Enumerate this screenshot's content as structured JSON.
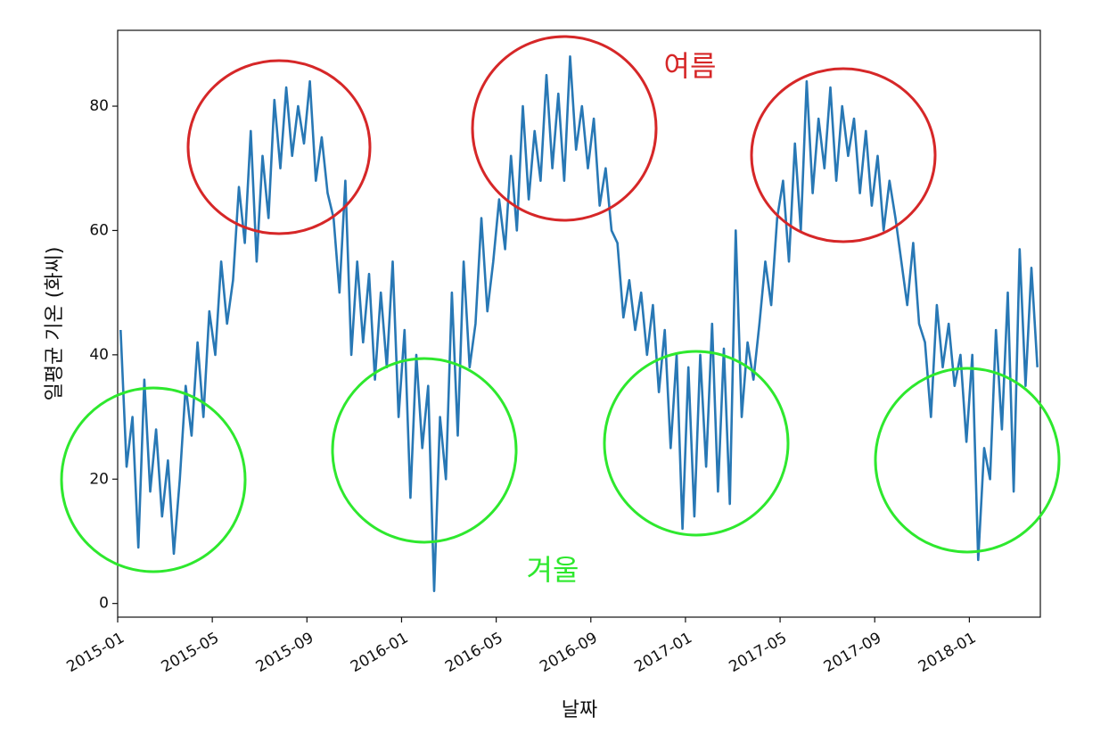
{
  "chart_data": {
    "type": "line",
    "xlabel": "날짜",
    "ylabel": "일평균 기온 (화씨)",
    "annotations": [
      {
        "text": "여름",
        "color": "#d62728"
      },
      {
        "text": "겨울",
        "color": "#2ee82e"
      }
    ],
    "color": "#2878b5",
    "x": [
      "2015-01",
      "2015-01",
      "2015-01",
      "2015-01",
      "2015-02",
      "2015-02",
      "2015-02",
      "2015-02",
      "2015-03",
      "2015-03",
      "2015-03",
      "2015-03",
      "2015-04",
      "2015-04",
      "2015-04",
      "2015-04",
      "2015-05",
      "2015-05",
      "2015-05",
      "2015-05",
      "2015-06",
      "2015-06",
      "2015-06",
      "2015-06",
      "2015-07",
      "2015-07",
      "2015-07",
      "2015-07",
      "2015-08",
      "2015-08",
      "2015-08",
      "2015-08",
      "2015-09",
      "2015-09",
      "2015-09",
      "2015-09",
      "2015-10",
      "2015-10",
      "2015-10",
      "2015-10",
      "2015-11",
      "2015-11",
      "2015-11",
      "2015-11",
      "2015-12",
      "2015-12",
      "2015-12",
      "2015-12",
      "2016-01",
      "2016-01",
      "2016-01",
      "2016-01",
      "2016-02",
      "2016-02",
      "2016-02",
      "2016-02",
      "2016-03",
      "2016-03",
      "2016-03",
      "2016-03",
      "2016-04",
      "2016-04",
      "2016-04",
      "2016-04",
      "2016-05",
      "2016-05",
      "2016-05",
      "2016-05",
      "2016-06",
      "2016-06",
      "2016-06",
      "2016-06",
      "2016-07",
      "2016-07",
      "2016-07",
      "2016-07",
      "2016-08",
      "2016-08",
      "2016-08",
      "2016-08",
      "2016-09",
      "2016-09",
      "2016-09",
      "2016-09",
      "2016-10",
      "2016-10",
      "2016-10",
      "2016-10",
      "2016-11",
      "2016-11",
      "2016-11",
      "2016-11",
      "2016-12",
      "2016-12",
      "2016-12",
      "2016-12",
      "2017-01",
      "2017-01",
      "2017-01",
      "2017-01",
      "2017-02",
      "2017-02",
      "2017-02",
      "2017-02",
      "2017-03",
      "2017-03",
      "2017-03",
      "2017-03",
      "2017-04",
      "2017-04",
      "2017-04",
      "2017-04",
      "2017-05",
      "2017-05",
      "2017-05",
      "2017-05",
      "2017-06",
      "2017-06",
      "2017-06",
      "2017-06",
      "2017-07",
      "2017-07",
      "2017-07",
      "2017-07",
      "2017-08",
      "2017-08",
      "2017-08",
      "2017-08",
      "2017-09",
      "2017-09",
      "2017-09",
      "2017-09",
      "2017-10",
      "2017-10",
      "2017-10",
      "2017-10",
      "2017-11",
      "2017-11",
      "2017-11",
      "2017-11",
      "2017-12",
      "2017-12",
      "2017-12",
      "2017-12",
      "2018-01",
      "2018-01",
      "2018-01",
      "2018-01",
      "2018-02",
      "2018-02",
      "2018-02",
      "2018-02",
      "2018-03",
      "2018-03",
      "2018-03",
      "2018-03"
    ],
    "values": [
      44,
      22,
      30,
      9,
      36,
      18,
      28,
      14,
      23,
      8,
      20,
      35,
      27,
      42,
      30,
      47,
      40,
      55,
      45,
      52,
      67,
      58,
      76,
      55,
      72,
      62,
      81,
      70,
      83,
      72,
      80,
      74,
      84,
      68,
      75,
      66,
      62,
      50,
      68,
      40,
      55,
      42,
      53,
      36,
      50,
      38,
      55,
      30,
      44,
      17,
      40,
      25,
      35,
      2,
      30,
      20,
      50,
      27,
      55,
      38,
      45,
      62,
      47,
      55,
      65,
      57,
      72,
      60,
      80,
      65,
      76,
      68,
      85,
      70,
      82,
      68,
      88,
      73,
      80,
      70,
      78,
      64,
      70,
      60,
      58,
      46,
      52,
      44,
      50,
      40,
      48,
      34,
      44,
      25,
      40,
      12,
      38,
      14,
      40,
      22,
      45,
      18,
      41,
      16,
      60,
      30,
      42,
      36,
      45,
      55,
      48,
      62,
      68,
      55,
      74,
      60,
      84,
      66,
      78,
      70,
      83,
      68,
      80,
      72,
      78,
      66,
      76,
      64,
      72,
      60,
      68,
      62,
      55,
      48,
      58,
      45,
      42,
      30,
      48,
      38,
      45,
      35,
      40,
      26,
      40,
      7,
      25,
      20,
      44,
      28,
      50,
      18,
      57,
      35,
      54,
      38
    ],
    "xlim": [
      "2015-01",
      "2018-04"
    ],
    "xticks": [
      "2015-01",
      "2015-05",
      "2015-09",
      "2016-01",
      "2016-05",
      "2016-09",
      "2017-01",
      "2017-05",
      "2017-09",
      "2018-01"
    ],
    "ylim": [
      -2.2,
      92.2
    ],
    "yticks": [
      0,
      20,
      40,
      60,
      80
    ]
  }
}
